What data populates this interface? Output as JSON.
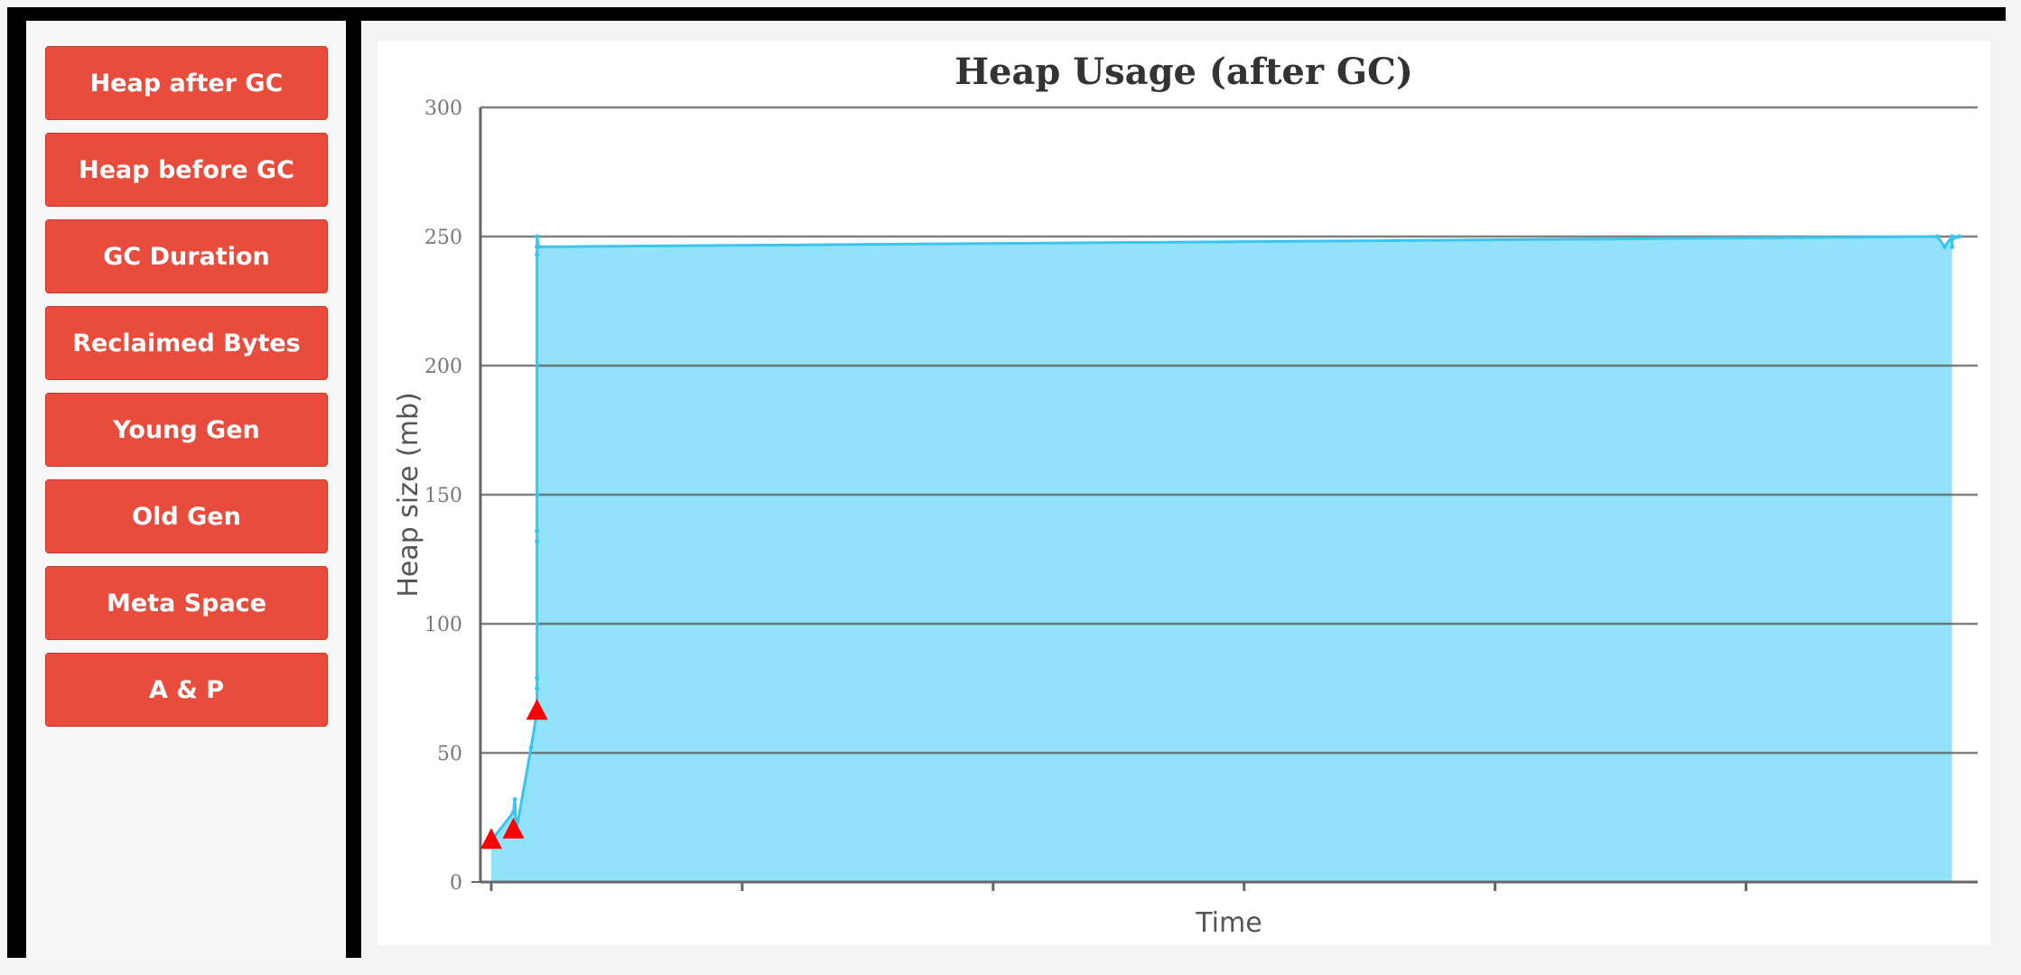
{
  "sidebar": {
    "buttons": [
      {
        "label": "Heap after GC"
      },
      {
        "label": "Heap before GC"
      },
      {
        "label": "GC Duration"
      },
      {
        "label": "Reclaimed Bytes"
      },
      {
        "label": "Young Gen"
      },
      {
        "label": "Old Gen"
      },
      {
        "label": "Meta Space"
      },
      {
        "label": "A & P"
      }
    ]
  },
  "colors": {
    "button": "#e74c3c",
    "area_fill": "#92e2fb",
    "line": "#3cc3ee",
    "marker": "#ff0000"
  },
  "chart_data": {
    "type": "area",
    "title": "Heap Usage (after GC)",
    "xlabel": "Time",
    "ylabel": "Heap size (mb)",
    "ylim": [
      0,
      300
    ],
    "yticks": [
      "0",
      "50",
      "100",
      "150",
      "200",
      "250",
      "300"
    ],
    "xlim": [
      0,
      1
    ],
    "grid": true,
    "series": [
      {
        "values": [
          [
            0.0,
            16
          ],
          [
            0.015,
            27
          ],
          [
            0.016,
            32
          ],
          [
            0.017,
            20
          ],
          [
            0.027,
            52
          ],
          [
            0.031,
            66
          ],
          [
            0.031,
            75
          ],
          [
            0.031,
            79
          ],
          [
            0.031,
            132
          ],
          [
            0.031,
            136
          ],
          [
            0.031,
            150
          ],
          [
            0.031,
            243
          ],
          [
            0.031,
            246
          ],
          [
            0.031,
            250
          ],
          [
            0.032,
            246
          ],
          [
            0.98,
            250
          ],
          [
            0.985,
            246
          ],
          [
            0.99,
            250
          ],
          [
            0.995,
            250
          ],
          [
            0.99,
            249
          ],
          [
            0.99,
            246
          ],
          [
            0.99,
            250
          ]
        ]
      }
    ],
    "markers": [
      [
        0.0,
        16
      ],
      [
        0.015,
        20
      ],
      [
        0.031,
        66
      ]
    ]
  }
}
